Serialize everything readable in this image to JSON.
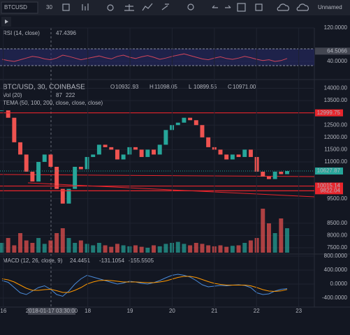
{
  "toolbar": {
    "symbol": "BTCUSD",
    "interval": "30",
    "layout": "Unnamed"
  },
  "xaxis": {
    "xlim": [
      15.92,
      23.37
    ],
    "xticks": [
      16,
      18,
      19,
      20,
      21,
      22,
      23
    ],
    "cursor_label": "2018-01-17 03:30:00"
  },
  "chart_data": [
    {
      "type": "line",
      "title": "RSI (14, close)",
      "readout": "47.4396",
      "color": "#d2455a",
      "band_color": "#262a66",
      "values": [
        45,
        42,
        40,
        44,
        48,
        52,
        50,
        46,
        44,
        48,
        55,
        52,
        48,
        44,
        47,
        50,
        53,
        49,
        46,
        52,
        55,
        50,
        47,
        51,
        54,
        50,
        45,
        48,
        52,
        55,
        58,
        54,
        50,
        46,
        44,
        48,
        51,
        47,
        45,
        48,
        52,
        49,
        45,
        42,
        44,
        40,
        42,
        47
      ],
      "ylim": [
        0,
        120
      ],
      "yticks": [
        {
          "value": 120,
          "label": "120.0000"
        },
        {
          "value": 40,
          "label": "40.0000"
        }
      ],
      "bands": [
        70,
        30
      ],
      "marker": {
        "value": 64.5066,
        "label": "64.5066"
      }
    },
    {
      "type": "candlestick",
      "title": "BTC/USD, 30, COINBASE",
      "ohlc": [
        {
          "key": "O",
          "value": "10932.93"
        },
        {
          "key": "H",
          "value": "11098.05"
        },
        {
          "key": "L",
          "value": "10899.55"
        },
        {
          "key": "C",
          "value": "10971.00"
        }
      ],
      "up_color": "#26a69a",
      "down_color": "#ef5350",
      "values": [
        13100,
        12800,
        11800,
        11300,
        10600,
        10200,
        11000,
        11300,
        10800,
        9900,
        9300,
        9900,
        10800,
        10700,
        11200,
        11300,
        11700,
        11600,
        11500,
        11100,
        11300,
        11600,
        11500,
        11200,
        11500,
        11300,
        11700,
        12300,
        12500,
        12600,
        12800,
        12700,
        12500,
        12000,
        11600,
        11500,
        11300,
        11100,
        11300,
        11200,
        11500,
        11200,
        10600,
        10400,
        10300,
        10600,
        10500,
        10627.87
      ],
      "ylim": [
        7300,
        14300
      ],
      "yticks": [
        {
          "value": 14000,
          "label": "14000.00"
        },
        {
          "value": 13500,
          "label": "13500.00"
        },
        {
          "value": 12500,
          "label": "12500.00"
        },
        {
          "value": 12000,
          "label": "12000.00"
        },
        {
          "value": 11500,
          "label": "11500.00"
        },
        {
          "value": 11000,
          "label": "11000.00"
        },
        {
          "value": 9500,
          "label": "9500.00"
        },
        {
          "value": 8500,
          "label": "8500.00"
        },
        {
          "value": 8000,
          "label": "8000.00"
        },
        {
          "value": 7500,
          "label": "7500.00"
        }
      ],
      "levels": [
        12999.75,
        10015.14,
        9822.04
      ],
      "level_color": "#e8252c",
      "last": 10627.87,
      "volume": {
        "title": "Vol (20)",
        "readouts": [
          {
            "value": "87",
            "color": "#26a69a"
          },
          {
            "value": "222",
            "color": "#ff9800"
          }
        ],
        "vlim": [
          0,
          1000
        ],
        "values": [
          200,
          300,
          150,
          400,
          250,
          200,
          300,
          180,
          250,
          400,
          500,
          300,
          200,
          250,
          180,
          150,
          200,
          150,
          120,
          180,
          150,
          130,
          150,
          120,
          100,
          150,
          130,
          180,
          200,
          220,
          180,
          150,
          200,
          180,
          150,
          130,
          150,
          120,
          140,
          150,
          200,
          250,
          300,
          900,
          600,
          400,
          700,
          500
        ]
      },
      "tema": "TEMA (50, 100, 200, close, close, close)"
    },
    {
      "type": "line",
      "title": "MACD (12, 26, close, 9)",
      "readouts": [
        {
          "value": "24.4451",
          "color": "#e53950"
        },
        {
          "value": "-131.1054",
          "color": "#4a8ad8"
        },
        {
          "value": "-155.5505",
          "color": "#ff9800"
        }
      ],
      "series": [
        {
          "color": "#4a8ad8",
          "values": [
            100,
            50,
            -100,
            -250,
            -300,
            -200,
            -100,
            -50,
            -150,
            -300,
            -350,
            -200,
            0,
            150,
            250,
            200,
            150,
            100,
            50,
            0,
            30,
            80,
            60,
            20,
            0,
            40,
            100,
            180,
            250,
            280,
            250,
            200,
            100,
            -20,
            -80,
            -60,
            -40,
            -50,
            -30,
            -20,
            -40,
            -100,
            -250,
            -300,
            -280,
            -200,
            -150,
            -131
          ]
        },
        {
          "color": "#ff9800",
          "values": [
            150,
            120,
            60,
            -30,
            -120,
            -180,
            -180,
            -160,
            -150,
            -190,
            -240,
            -240,
            -180,
            -100,
            0,
            60,
            100,
            110,
            100,
            80,
            60,
            60,
            60,
            50,
            40,
            40,
            60,
            90,
            140,
            190,
            220,
            220,
            190,
            130,
            70,
            20,
            -10,
            -30,
            -30,
            -30,
            -30,
            -50,
            -100,
            -160,
            -200,
            -210,
            -195,
            -155
          ]
        }
      ],
      "ylim": [
        -660,
        820
      ],
      "yticks": [
        {
          "value": 800,
          "label": "800.0000"
        },
        {
          "value": 400,
          "label": "400.0000"
        },
        {
          "value": 0,
          "label": "0.0000"
        },
        {
          "value": -400,
          "label": "-400.0000"
        }
      ]
    }
  ]
}
